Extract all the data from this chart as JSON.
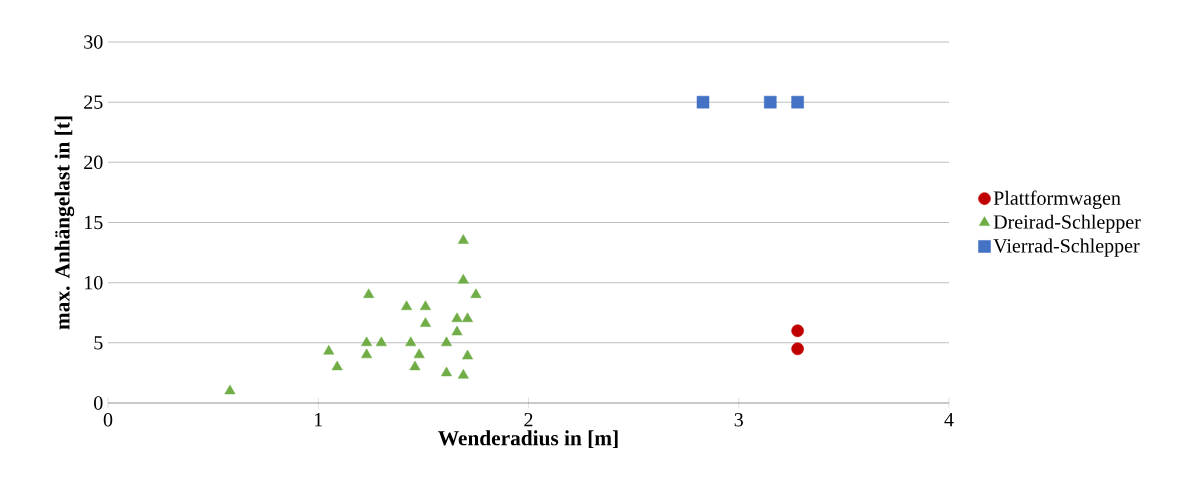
{
  "chart_data": {
    "type": "scatter",
    "xlabel": "Wenderadius in [m]",
    "ylabel": "max. Anhängelast in [t]",
    "xlim": [
      0,
      4
    ],
    "xticks": [
      0,
      1,
      2,
      3,
      4
    ],
    "ylim": [
      0,
      30
    ],
    "yticks": [
      0,
      5,
      10,
      15,
      20,
      25,
      30
    ],
    "grid": "y",
    "legend": "right",
    "series": [
      {
        "name": "Plattformwagen",
        "color": "#c00000",
        "marker": "circle",
        "x": [
          3.28,
          3.28
        ],
        "values": [
          6.0,
          4.5
        ]
      },
      {
        "name": "Dreirad-Schlepper",
        "color": "#70ad47",
        "marker": "triangle",
        "x": [
          0.58,
          1.05,
          1.09,
          1.24,
          1.23,
          1.23,
          1.3,
          1.42,
          1.51,
          1.51,
          1.44,
          1.48,
          1.46,
          1.61,
          1.61,
          1.66,
          1.66,
          1.71,
          1.69,
          1.69,
          1.75,
          1.71,
          1.69
        ],
        "values": [
          1.0,
          4.3,
          3.0,
          9.0,
          5.0,
          4.0,
          5.0,
          8.0,
          8.0,
          6.6,
          5.0,
          4.0,
          3.0,
          5.0,
          2.5,
          7.0,
          5.9,
          7.0,
          13.5,
          10.2,
          9.0,
          3.9,
          2.3
        ]
      },
      {
        "name": "Vierrad-Schlepper",
        "color": "#4472c4",
        "marker": "square",
        "x": [
          2.83,
          3.15,
          3.28
        ],
        "values": [
          25,
          25,
          25
        ]
      }
    ]
  }
}
